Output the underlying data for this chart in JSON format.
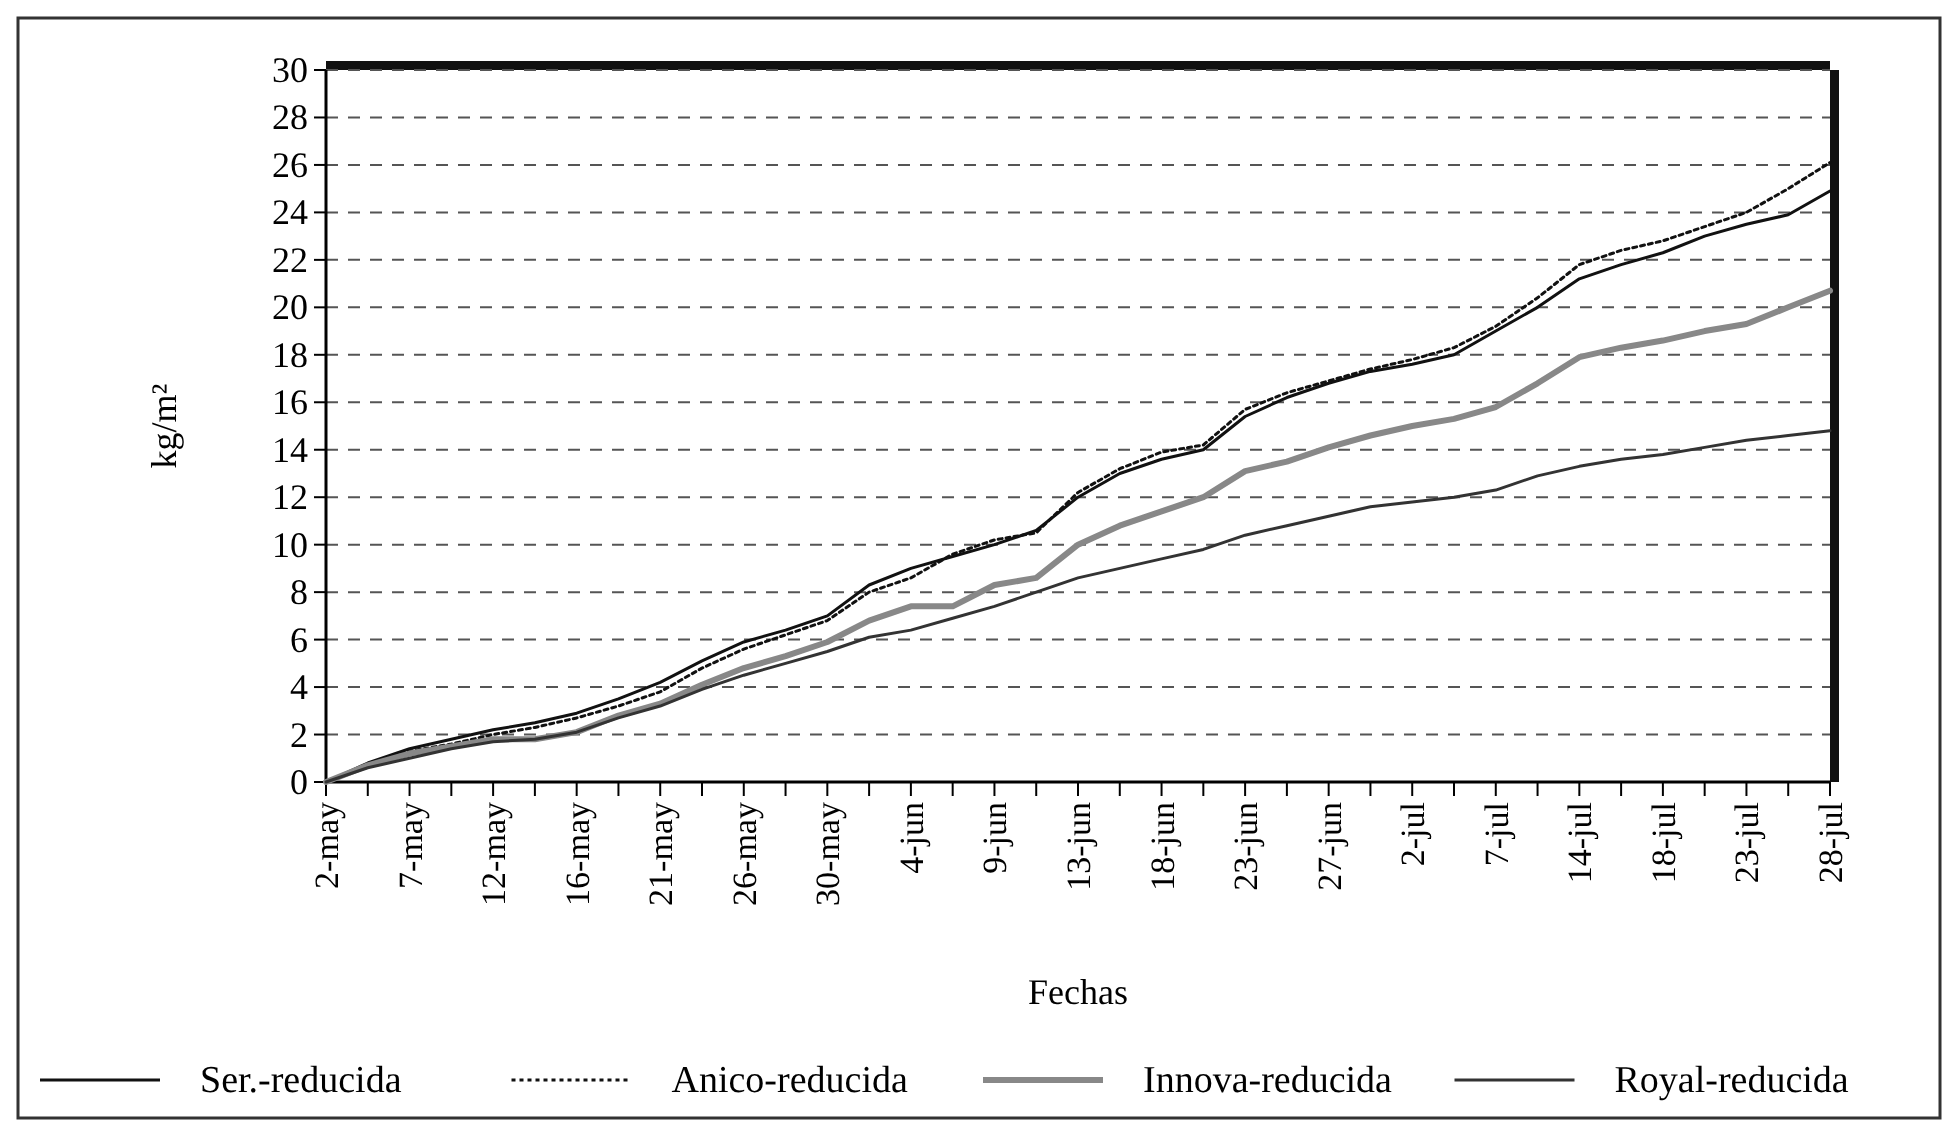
{
  "chart_data": {
    "type": "line",
    "xlabel": "Fechas",
    "ylabel": "kg/m²",
    "categories": [
      "2-may",
      null,
      "7-may",
      null,
      "12-may",
      null,
      "16-may",
      null,
      "21-may",
      null,
      "26-may",
      null,
      "30-may",
      null,
      "4-jun",
      null,
      "9-jun",
      null,
      "13-jun",
      null,
      "18-jun",
      null,
      "23-jun",
      null,
      "27-jun",
      null,
      "2-jul",
      null,
      "7-jul",
      null,
      "14-jul",
      null,
      "18-jul",
      null,
      "23-jul",
      null,
      "28-jul"
    ],
    "ylim": [
      0,
      30
    ],
    "yticks": [
      0,
      2,
      4,
      6,
      8,
      10,
      12,
      14,
      16,
      18,
      20,
      22,
      24,
      26,
      28,
      30
    ],
    "grid": "y",
    "legend": "bottom",
    "marker": "none",
    "series": [
      {
        "name": "Ser.-reducida",
        "color": "#111111",
        "line_style": "solid",
        "values": [
          0,
          0.8,
          1.4,
          1.8,
          2.2,
          2.5,
          2.9,
          3.5,
          4.2,
          5.1,
          5.9,
          6.4,
          7.0,
          8.3,
          9.0,
          9.5,
          10.0,
          10.6,
          12.0,
          13.0,
          13.6,
          14.0,
          15.4,
          16.2,
          16.8,
          17.3,
          17.6,
          18.0,
          19.0,
          20.0,
          21.2,
          21.8,
          22.3,
          23.0,
          23.5,
          23.9,
          24.9
        ]
      },
      {
        "name": "Anico-reducida",
        "color": "#111111",
        "line_style": "dotted",
        "values": [
          0,
          0.7,
          1.3,
          1.6,
          2.0,
          2.3,
          2.7,
          3.2,
          3.8,
          4.8,
          5.6,
          6.2,
          6.8,
          8.0,
          8.6,
          9.6,
          10.2,
          10.5,
          12.2,
          13.2,
          13.9,
          14.2,
          15.7,
          16.4,
          16.9,
          17.4,
          17.8,
          18.3,
          19.2,
          20.4,
          21.8,
          22.4,
          22.8,
          23.4,
          24.0,
          25.0,
          26.1
        ]
      },
      {
        "name": "Innova-reducida",
        "color": "#888888",
        "line_style": "solid",
        "values": [
          0,
          0.7,
          1.2,
          1.5,
          1.8,
          1.8,
          2.1,
          2.8,
          3.3,
          4.1,
          4.8,
          5.3,
          5.9,
          6.8,
          7.4,
          7.4,
          8.3,
          8.6,
          10.0,
          10.8,
          11.4,
          12.0,
          13.1,
          13.5,
          14.1,
          14.6,
          15.0,
          15.3,
          15.8,
          16.8,
          17.9,
          18.3,
          18.6,
          19.0,
          19.3,
          20.0,
          20.7
        ]
      },
      {
        "name": "Royal-reducida",
        "color": "#333333",
        "line_style": "solid",
        "values": [
          0,
          0.6,
          1.0,
          1.4,
          1.7,
          1.8,
          2.1,
          2.7,
          3.2,
          3.9,
          4.5,
          5.0,
          5.5,
          6.1,
          6.4,
          6.9,
          7.4,
          8.0,
          8.6,
          9.0,
          9.4,
          9.8,
          10.4,
          10.8,
          11.2,
          11.6,
          11.8,
          12.0,
          12.3,
          12.9,
          13.3,
          13.6,
          13.8,
          14.1,
          14.4,
          14.6,
          14.8
        ]
      }
    ]
  }
}
